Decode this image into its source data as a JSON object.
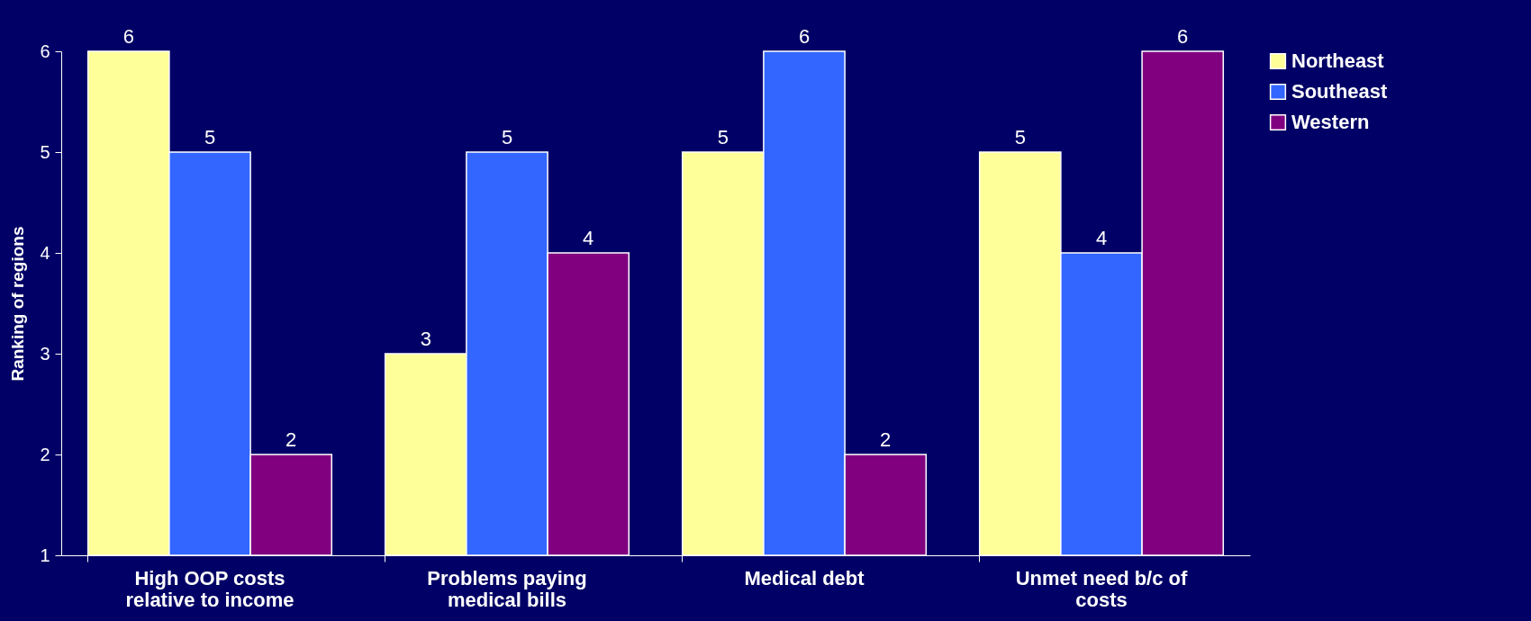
{
  "chart_data": {
    "type": "bar",
    "ylabel": "Ranking of regions",
    "categories": [
      "High OOP costs\nrelative to income",
      "Problems paying\nmedical bills",
      "Medical debt",
      "Unmet need b/c of\ncosts"
    ],
    "series": [
      {
        "name": "Northeast",
        "color": "#ffff99",
        "values": [
          6,
          3,
          5,
          5
        ]
      },
      {
        "name": "Southeast",
        "color": "#3366ff",
        "values": [
          5,
          5,
          6,
          4
        ]
      },
      {
        "name": "Western",
        "color": "#800080",
        "values": [
          2,
          4,
          2,
          6
        ]
      }
    ],
    "ylim": [
      1,
      6
    ],
    "yticks": [
      1,
      2,
      3,
      4,
      5,
      6
    ],
    "grid": false,
    "legend": "right",
    "data_labels": true
  }
}
